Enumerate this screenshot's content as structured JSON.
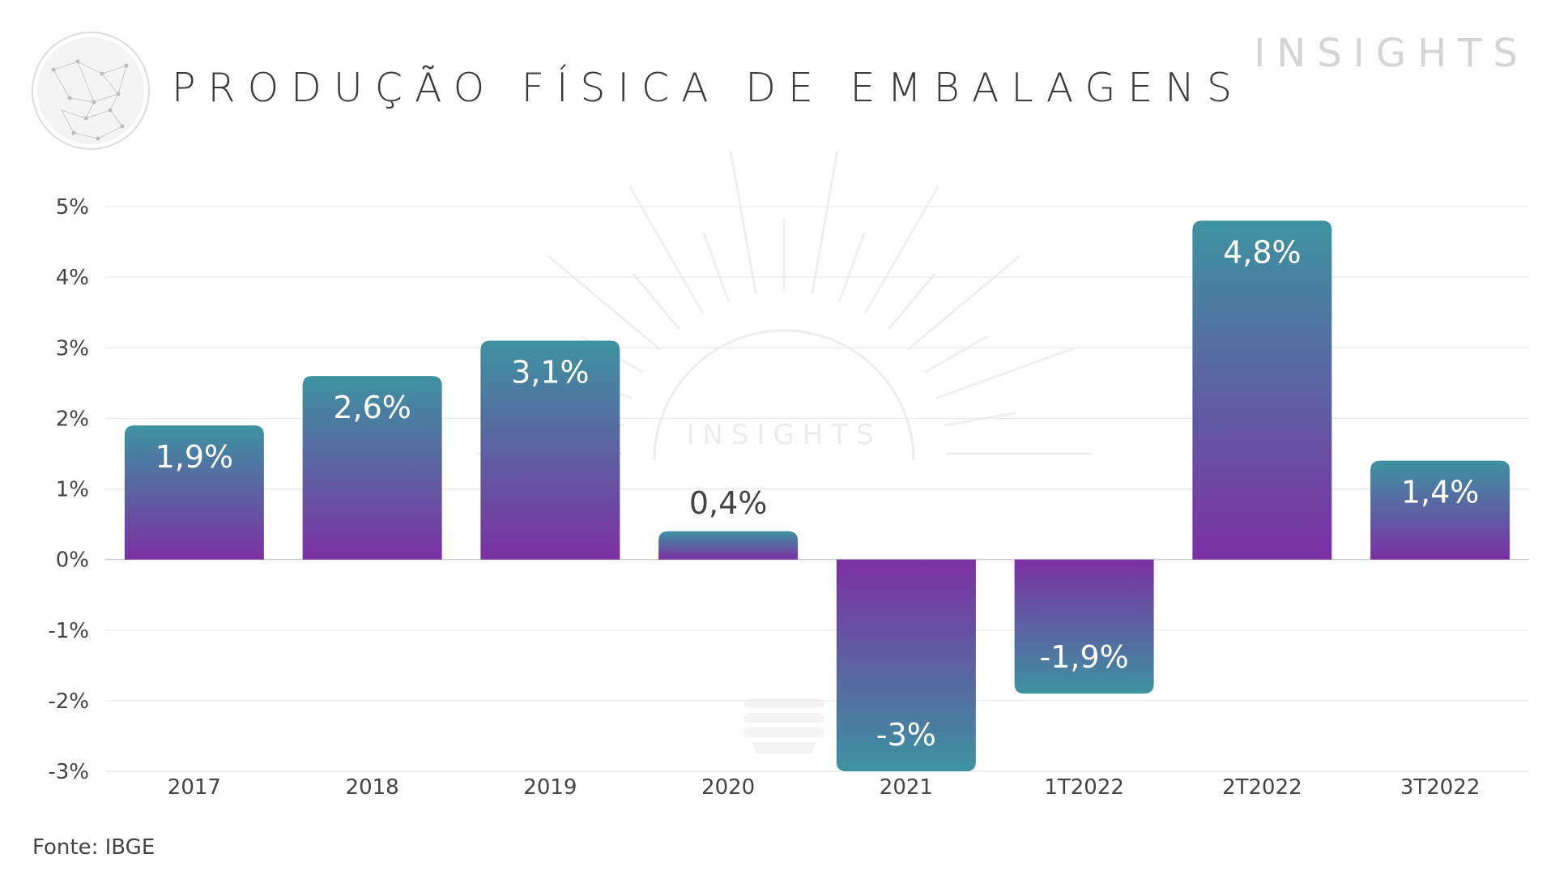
{
  "header": {
    "title": "PRODUÇÃO FÍSICA DE EMBALAGENS",
    "brand": "INSIGHTS"
  },
  "watermark": {
    "text": "INSIGHTS"
  },
  "footer": {
    "source": "Fonte: IBGE"
  },
  "colors": {
    "teal": "#3d93a0",
    "purple": "#7b30a3",
    "grid": "#e6e6e6",
    "axis_text": "#444444",
    "label_dark": "#444444",
    "label_light": "#ffffff"
  },
  "chart_data": {
    "type": "bar",
    "categories": [
      "2017",
      "2018",
      "2019",
      "2020",
      "2021",
      "1T2022",
      "2T2022",
      "3T2022"
    ],
    "values": [
      1.9,
      2.6,
      3.1,
      0.4,
      -3.0,
      -1.9,
      4.8,
      1.4
    ],
    "data_labels": [
      "1,9%",
      "2,6%",
      "3,1%",
      "0,4%",
      "-3%",
      "-1,9%",
      "4,8%",
      "1,4%"
    ],
    "yticks": [
      5,
      4,
      3,
      2,
      1,
      0,
      -1,
      -2,
      -3
    ],
    "ytick_labels": [
      "5%",
      "4%",
      "3%",
      "2%",
      "1%",
      "0%",
      "-1%",
      "-2%",
      "-3%"
    ],
    "ylim": [
      -3,
      5
    ],
    "grid": true,
    "legend": "none",
    "title": "PRODUÇÃO FÍSICA DE EMBALAGENS"
  }
}
